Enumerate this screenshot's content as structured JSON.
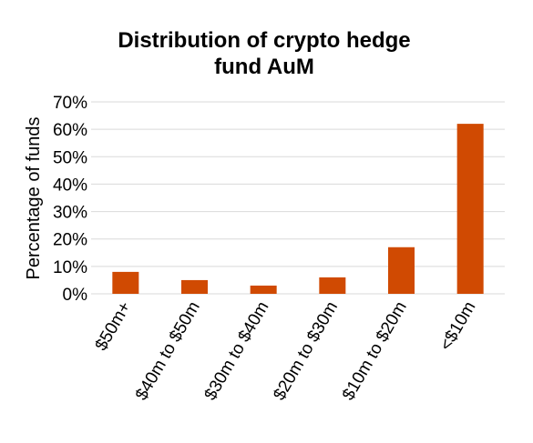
{
  "chart_data": {
    "type": "bar",
    "title_lines": [
      "Distribution of crypto hedge",
      "fund AuM"
    ],
    "xlabel": "",
    "ylabel": "Percentage of funds",
    "categories": [
      "$50m+",
      "$40m to $50m",
      "$30m to $40m",
      "$20m to $30m",
      "$10m to $20m",
      "<$10m"
    ],
    "values": [
      8,
      5,
      3,
      6,
      17,
      62
    ],
    "unit": "%",
    "ylim": [
      0,
      70
    ],
    "yticks": [
      "0%",
      "10%",
      "20%",
      "30%",
      "40%",
      "50%",
      "60%",
      "70%"
    ],
    "grid": true,
    "legend": "none",
    "bar_color": "#d04a02"
  }
}
